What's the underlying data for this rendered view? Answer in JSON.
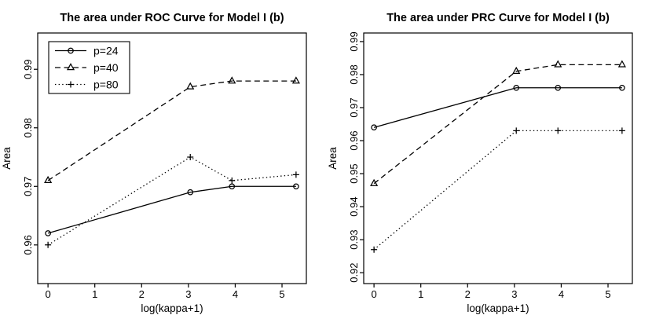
{
  "window": {
    "background": "#ffffff",
    "foreground": "#000000"
  },
  "chart_data": [
    {
      "type": "line",
      "title": "The area under ROC Curve for Model I (b)",
      "xlabel": "log(kappa+1)",
      "ylabel": "Area",
      "xlim": [
        -0.22,
        5.52
      ],
      "ylim": [
        0.9534,
        0.9962
      ],
      "xticks": [
        0,
        1,
        2,
        3,
        4,
        5
      ],
      "yticks": [
        0.96,
        0.97,
        0.98,
        0.99
      ],
      "grid": false,
      "x": [
        0,
        3.04,
        3.93,
        5.3
      ],
      "legend": {
        "visible": true,
        "position": "topleft",
        "entries": [
          "p=24",
          "p=40",
          "p=80"
        ]
      },
      "series": [
        {
          "name": "p=24",
          "linestyle": "solid",
          "marker": "circle",
          "color": "#000000",
          "values": [
            0.962,
            0.969,
            0.97,
            0.97
          ]
        },
        {
          "name": "p=40",
          "linestyle": "dashed",
          "marker": "triangle",
          "color": "#000000",
          "values": [
            0.971,
            0.987,
            0.988,
            0.988
          ]
        },
        {
          "name": "p=80",
          "linestyle": "dotted",
          "marker": "plus",
          "color": "#000000",
          "values": [
            0.96,
            0.975,
            0.971,
            0.972
          ]
        }
      ]
    },
    {
      "type": "line",
      "title": "The area under PRC Curve for Model I (b)",
      "xlabel": "log(kappa+1)",
      "ylabel": "Area",
      "xlim": [
        -0.22,
        5.52
      ],
      "ylim": [
        0.9167,
        0.9926
      ],
      "xticks": [
        0,
        1,
        2,
        3,
        4,
        5
      ],
      "yticks": [
        0.92,
        0.93,
        0.94,
        0.95,
        0.96,
        0.97,
        0.98,
        0.99
      ],
      "grid": false,
      "x": [
        0,
        3.04,
        3.93,
        5.3
      ],
      "legend": {
        "visible": false,
        "position": "topleft",
        "entries": []
      },
      "series": [
        {
          "name": "p=24",
          "linestyle": "solid",
          "marker": "circle",
          "color": "#000000",
          "values": [
            0.964,
            0.976,
            0.976,
            0.976
          ]
        },
        {
          "name": "p=40",
          "linestyle": "dashed",
          "marker": "triangle",
          "color": "#000000",
          "values": [
            0.947,
            0.981,
            0.983,
            0.983
          ]
        },
        {
          "name": "p=80",
          "linestyle": "dotted",
          "marker": "plus",
          "color": "#000000",
          "values": [
            0.927,
            0.963,
            0.963,
            0.963
          ]
        }
      ]
    }
  ]
}
